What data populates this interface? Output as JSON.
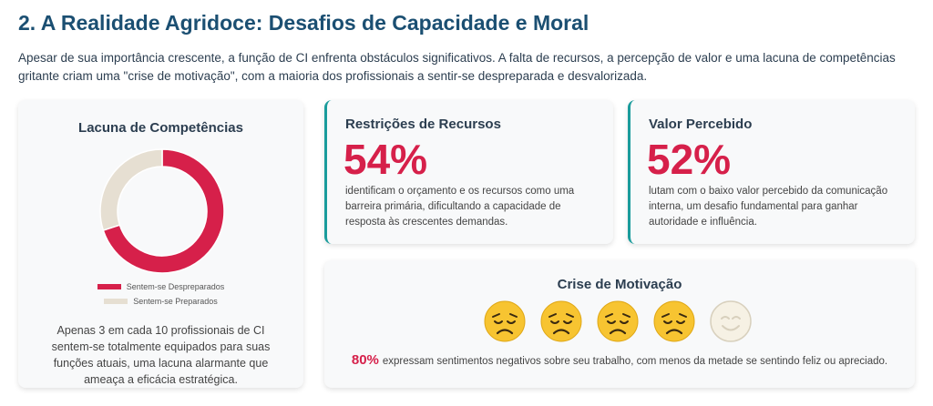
{
  "header": {
    "title": "2. A Realidade Agridoce: Desafios de Capacidade e Moral",
    "intro": "Apesar de sua importância crescente, a função de CI enfrenta obstáculos significativos. A falta de recursos, a percepção de valor e uma lacuna de competências gritante criam uma \"crise de motivação\", com a maioria dos profissionais a sentir-se despreparada e desvalorizada."
  },
  "gap_card": {
    "title": "Lacuna de Competências",
    "note": "Apenas 3 em cada 10 profissionais de CI sentem-se totalmente equipados para suas funções atuais, uma lacuna alarmante que ameaça a eficácia estratégica."
  },
  "chart_data": {
    "type": "pie",
    "donut": true,
    "title": "Lacuna de Competências",
    "categories": [
      "Sentem-se Despreparados",
      "Sentem-se Preparados"
    ],
    "values": [
      70,
      30
    ],
    "colors": [
      "#d6204a",
      "#e6dfd2"
    ],
    "legend": "bottom"
  },
  "resources_card": {
    "title": "Restrições de Recursos",
    "value": "54%",
    "description": "identificam o orçamento e os recursos como uma barreira primária, dificultando a capacidade de resposta às crescentes demandas."
  },
  "value_card": {
    "title": "Valor Percebido",
    "value": "52%",
    "description": "lutam com o baixo valor percebido da comunicação interna, um desafio fundamental para ganhar autoridade e influência."
  },
  "motivation_card": {
    "title": "Crise de Motivação",
    "faces": [
      "sad-face-icon",
      "sad-face-icon",
      "sad-face-icon",
      "sad-face-icon",
      "happy-face-icon"
    ],
    "percent": "80%",
    "note": "expressam sentimentos negativos sobre seu trabalho, com menos da metade se sentindo feliz ou apreciado."
  },
  "colors": {
    "title": "#1b4f72",
    "accent_red": "#d6204a",
    "accent_teal": "#1a9c9c",
    "face_yellow": "#f7c431"
  }
}
